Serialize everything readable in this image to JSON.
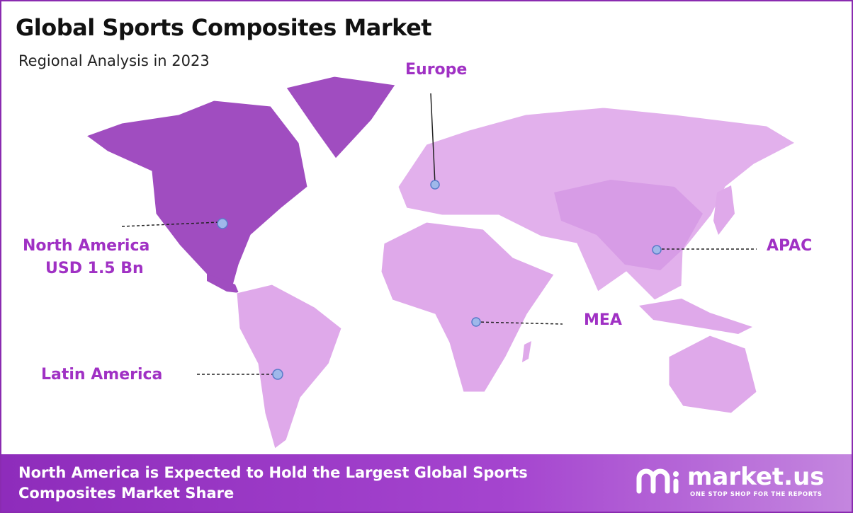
{
  "header": {
    "title": "Global Sports Composites Market",
    "subtitle": "Regional Analysis in 2023"
  },
  "regions": [
    {
      "label": "North America",
      "value_label": "USD 1.5 Bn"
    },
    {
      "label": "Europe"
    },
    {
      "label": "APAC"
    },
    {
      "label": "MEA"
    },
    {
      "label": "Latin America"
    }
  ],
  "footer": {
    "text": "North America is Expected to Hold the Largest Global Sports Composites Market Share"
  },
  "logo": {
    "name": "market.us",
    "tagline": "ONE STOP SHOP FOR THE REPORTS"
  }
}
